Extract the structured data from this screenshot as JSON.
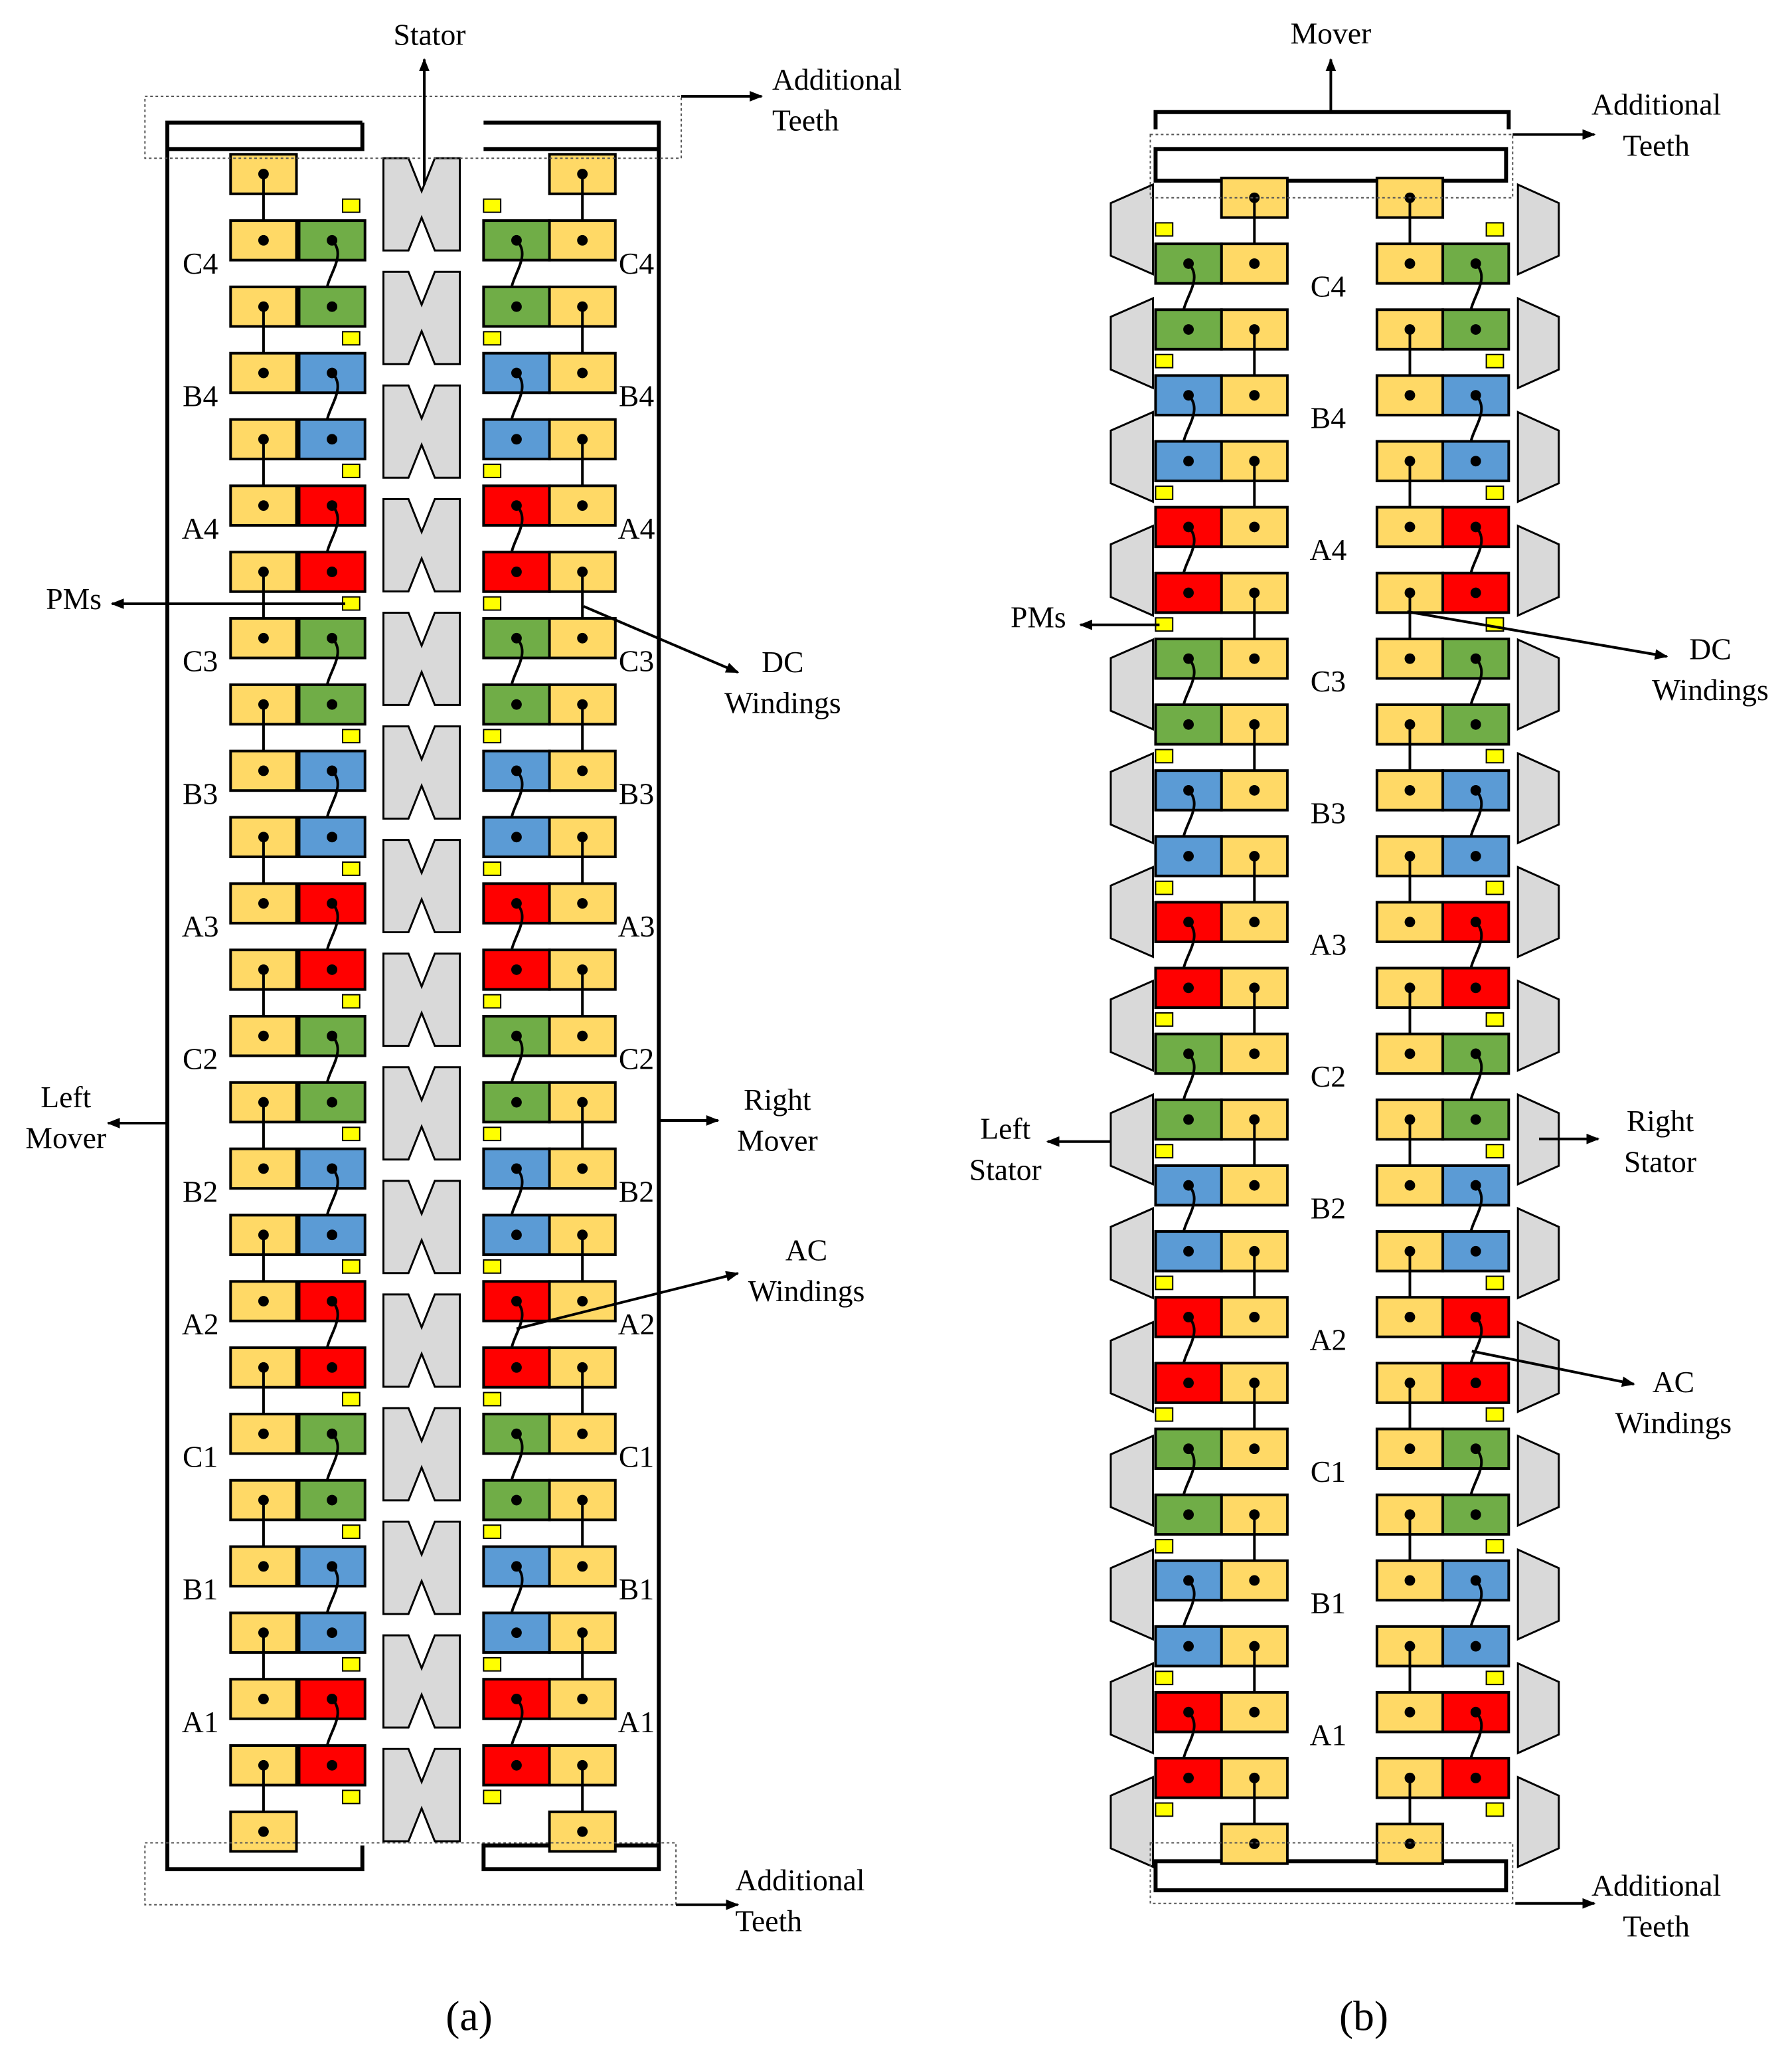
{
  "diagram_a": {
    "caption": "(a)",
    "stator": "Stator",
    "additional_teeth_top": [
      "Additional",
      "Teeth"
    ],
    "additional_teeth_bottom": [
      "Additional",
      "Teeth"
    ],
    "pms": "PMs",
    "dc_windings": [
      "DC",
      "Windings"
    ],
    "left_mover": [
      "Left",
      "Mover"
    ],
    "right_mover": [
      "Right",
      "Mover"
    ],
    "ac_windings": [
      "AC",
      "Windings"
    ],
    "phase_labels": [
      "C4",
      "B4",
      "A4",
      "C3",
      "B3",
      "A3",
      "C2",
      "B2",
      "A2",
      "C1",
      "B1",
      "A1"
    ]
  },
  "diagram_b": {
    "caption": "(b)",
    "mover": "Mover",
    "additional_teeth_top": [
      "Additional",
      "Teeth"
    ],
    "additional_teeth_bottom": [
      "Additional",
      "Teeth"
    ],
    "pms": "PMs",
    "dc_windings": [
      "DC",
      "Windings"
    ],
    "left_stator": [
      "Left",
      "Stator"
    ],
    "right_stator": [
      "Right",
      "Stator"
    ],
    "ac_windings": [
      "AC",
      "Windings"
    ],
    "phase_labels": [
      "C4",
      "B4",
      "A4",
      "C3",
      "B3",
      "A3",
      "C2",
      "B2",
      "A2",
      "C1",
      "B1",
      "A1"
    ]
  }
}
